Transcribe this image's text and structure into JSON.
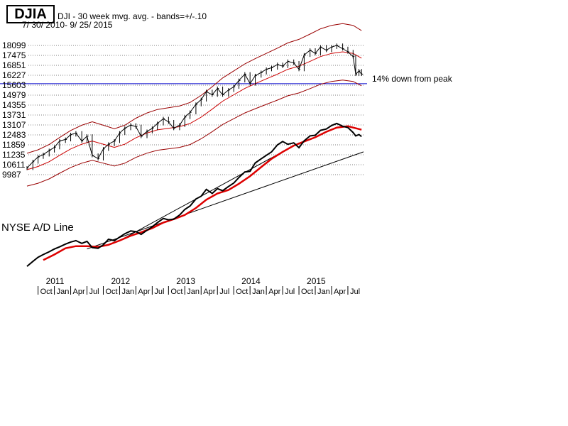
{
  "header": {
    "ticker": "DJIA",
    "subtitle": "DJI - 30 week mvg. avg. - bands=+/-.10",
    "date_range": "7/ 30/ 2010- 9/ 25/ 2015"
  },
  "annotations": {
    "peak_note": "14% down from peak",
    "ad_line_label": "NYSE A/D Line"
  },
  "colors": {
    "price_bars": "#000000",
    "moving_average": "#cc0000",
    "bands": "#990000",
    "horizontal_line": "#0000cc",
    "ad_line": "#000000",
    "ad_moving_average": "#dd0000",
    "gridlines": "#7f7f7f"
  },
  "chart_data": {
    "type": "line",
    "y_ticks": [
      9987,
      10611,
      11235,
      11859,
      12483,
      13107,
      13731,
      14355,
      14979,
      15603,
      16227,
      16851,
      17475,
      18099
    ],
    "y_tick_labels": [
      "9987",
      "10611",
      "11235",
      "11859",
      "12483",
      "13107",
      "13731",
      "14355",
      "14979",
      "15603",
      "16227",
      "16851",
      "17475",
      "18099"
    ],
    "ylim": [
      9900,
      18500
    ],
    "year_labels": [
      "2011",
      "2012",
      "2013",
      "2014",
      "2015"
    ],
    "month_labels": [
      "Oct",
      "Jan",
      "Apr",
      "Jul",
      "Oct",
      "Jan",
      "Apr",
      "Jul",
      "Oct",
      "Jan",
      "Apr",
      "Jul",
      "Oct",
      "Jan",
      "Apr",
      "Jul",
      "Oct",
      "Jan",
      "Apr",
      "Jul"
    ],
    "xlim": [
      2010.58,
      2015.74
    ],
    "horizontal_line_value": 15700,
    "djia_weekly": [
      [
        2010.58,
        10400
      ],
      [
        2010.67,
        10800
      ],
      [
        2010.75,
        11100
      ],
      [
        2010.83,
        11250
      ],
      [
        2010.92,
        11500
      ],
      [
        2011.0,
        11700
      ],
      [
        2011.08,
        12100
      ],
      [
        2011.17,
        12200
      ],
      [
        2011.25,
        12500
      ],
      [
        2011.33,
        12600
      ],
      [
        2011.42,
        12100
      ],
      [
        2011.5,
        12400
      ],
      [
        2011.58,
        11200
      ],
      [
        2011.67,
        11000
      ],
      [
        2011.75,
        11600
      ],
      [
        2011.83,
        11900
      ],
      [
        2011.92,
        12100
      ],
      [
        2012.0,
        12600
      ],
      [
        2012.08,
        12900
      ],
      [
        2012.17,
        13100
      ],
      [
        2012.25,
        13000
      ],
      [
        2012.33,
        12400
      ],
      [
        2012.42,
        12700
      ],
      [
        2012.5,
        12900
      ],
      [
        2012.58,
        13200
      ],
      [
        2012.67,
        13500
      ],
      [
        2012.75,
        13300
      ],
      [
        2012.83,
        12900
      ],
      [
        2012.92,
        13100
      ],
      [
        2013.0,
        13600
      ],
      [
        2013.08,
        13900
      ],
      [
        2013.17,
        14400
      ],
      [
        2013.25,
        14700
      ],
      [
        2013.33,
        15200
      ],
      [
        2013.42,
        15000
      ],
      [
        2013.5,
        15400
      ],
      [
        2013.58,
        15000
      ],
      [
        2013.67,
        15300
      ],
      [
        2013.75,
        15500
      ],
      [
        2013.83,
        15900
      ],
      [
        2013.92,
        16300
      ],
      [
        2014.0,
        15700
      ],
      [
        2014.08,
        16200
      ],
      [
        2014.17,
        16400
      ],
      [
        2014.25,
        16600
      ],
      [
        2014.33,
        16700
      ],
      [
        2014.42,
        16900
      ],
      [
        2014.5,
        16800
      ],
      [
        2014.58,
        17100
      ],
      [
        2014.67,
        17000
      ],
      [
        2014.75,
        16600
      ],
      [
        2014.83,
        17500
      ],
      [
        2014.92,
        17800
      ],
      [
        2015.0,
        17600
      ],
      [
        2015.08,
        18000
      ],
      [
        2015.17,
        17800
      ],
      [
        2015.25,
        18000
      ],
      [
        2015.33,
        18100
      ],
      [
        2015.42,
        17900
      ],
      [
        2015.5,
        17700
      ],
      [
        2015.58,
        17400
      ],
      [
        2015.62,
        16300
      ],
      [
        2015.67,
        16500
      ],
      [
        2015.71,
        16300
      ]
    ],
    "ma30": [
      [
        2010.58,
        10300
      ],
      [
        2010.75,
        10500
      ],
      [
        2010.92,
        10800
      ],
      [
        2011.08,
        11200
      ],
      [
        2011.25,
        11600
      ],
      [
        2011.42,
        11900
      ],
      [
        2011.58,
        12100
      ],
      [
        2011.75,
        11900
      ],
      [
        2011.92,
        11700
      ],
      [
        2012.08,
        11900
      ],
      [
        2012.25,
        12300
      ],
      [
        2012.42,
        12600
      ],
      [
        2012.58,
        12800
      ],
      [
        2012.75,
        12900
      ],
      [
        2012.92,
        13000
      ],
      [
        2013.08,
        13200
      ],
      [
        2013.25,
        13600
      ],
      [
        2013.42,
        14100
      ],
      [
        2013.58,
        14600
      ],
      [
        2013.75,
        15000
      ],
      [
        2013.92,
        15400
      ],
      [
        2014.08,
        15700
      ],
      [
        2014.25,
        16000
      ],
      [
        2014.42,
        16300
      ],
      [
        2014.58,
        16600
      ],
      [
        2014.75,
        16800
      ],
      [
        2014.92,
        17100
      ],
      [
        2015.08,
        17400
      ],
      [
        2015.25,
        17600
      ],
      [
        2015.42,
        17700
      ],
      [
        2015.58,
        17600
      ],
      [
        2015.71,
        17300
      ]
    ],
    "band_pct": 0.1,
    "ad_line": [
      [
        2010.58,
        3
      ],
      [
        2010.67,
        10
      ],
      [
        2010.75,
        16
      ],
      [
        2010.83,
        20
      ],
      [
        2010.92,
        24
      ],
      [
        2011.0,
        28
      ],
      [
        2011.08,
        31
      ],
      [
        2011.17,
        35
      ],
      [
        2011.25,
        38
      ],
      [
        2011.33,
        40
      ],
      [
        2011.42,
        36
      ],
      [
        2011.5,
        39
      ],
      [
        2011.58,
        30
      ],
      [
        2011.67,
        29
      ],
      [
        2011.75,
        34
      ],
      [
        2011.83,
        42
      ],
      [
        2011.92,
        40
      ],
      [
        2012.0,
        45
      ],
      [
        2012.08,
        50
      ],
      [
        2012.17,
        54
      ],
      [
        2012.25,
        53
      ],
      [
        2012.33,
        49
      ],
      [
        2012.42,
        55
      ],
      [
        2012.5,
        60
      ],
      [
        2012.58,
        66
      ],
      [
        2012.67,
        72
      ],
      [
        2012.75,
        70
      ],
      [
        2012.83,
        71
      ],
      [
        2012.92,
        77
      ],
      [
        2013.0,
        85
      ],
      [
        2013.08,
        90
      ],
      [
        2013.17,
        100
      ],
      [
        2013.25,
        104
      ],
      [
        2013.33,
        114
      ],
      [
        2013.42,
        108
      ],
      [
        2013.5,
        115
      ],
      [
        2013.58,
        112
      ],
      [
        2013.67,
        118
      ],
      [
        2013.75,
        123
      ],
      [
        2013.83,
        131
      ],
      [
        2013.92,
        139
      ],
      [
        2014.0,
        140
      ],
      [
        2014.08,
        152
      ],
      [
        2014.17,
        158
      ],
      [
        2014.25,
        163
      ],
      [
        2014.33,
        168
      ],
      [
        2014.42,
        178
      ],
      [
        2014.5,
        183
      ],
      [
        2014.58,
        179
      ],
      [
        2014.67,
        181
      ],
      [
        2014.75,
        174
      ],
      [
        2014.83,
        184
      ],
      [
        2014.92,
        191
      ],
      [
        2015.0,
        192
      ],
      [
        2015.08,
        199
      ],
      [
        2015.17,
        201
      ],
      [
        2015.25,
        206
      ],
      [
        2015.33,
        209
      ],
      [
        2015.42,
        205
      ],
      [
        2015.5,
        203
      ],
      [
        2015.58,
        196
      ],
      [
        2015.62,
        191
      ],
      [
        2015.67,
        193
      ],
      [
        2015.71,
        190
      ]
    ],
    "ad_ma": [
      [
        2010.83,
        12
      ],
      [
        2011.0,
        20
      ],
      [
        2011.17,
        29
      ],
      [
        2011.33,
        32
      ],
      [
        2011.5,
        32
      ],
      [
        2011.67,
        31
      ],
      [
        2011.83,
        34
      ],
      [
        2012.0,
        40
      ],
      [
        2012.17,
        47
      ],
      [
        2012.33,
        52
      ],
      [
        2012.5,
        58
      ],
      [
        2012.67,
        66
      ],
      [
        2012.83,
        71
      ],
      [
        2013.0,
        77
      ],
      [
        2013.17,
        87
      ],
      [
        2013.33,
        99
      ],
      [
        2013.5,
        108
      ],
      [
        2013.67,
        113
      ],
      [
        2013.83,
        122
      ],
      [
        2014.0,
        133
      ],
      [
        2014.17,
        146
      ],
      [
        2014.33,
        158
      ],
      [
        2014.5,
        168
      ],
      [
        2014.67,
        177
      ],
      [
        2014.83,
        183
      ],
      [
        2015.0,
        189
      ],
      [
        2015.17,
        197
      ],
      [
        2015.33,
        203
      ],
      [
        2015.5,
        205
      ],
      [
        2015.71,
        200
      ]
    ],
    "ad_trendlines": [
      [
        [
          2011.5,
          28
        ],
        [
          2015.74,
          168
        ]
      ],
      [
        [
          2012.0,
          40
        ],
        [
          2014.75,
          181
        ]
      ]
    ]
  }
}
